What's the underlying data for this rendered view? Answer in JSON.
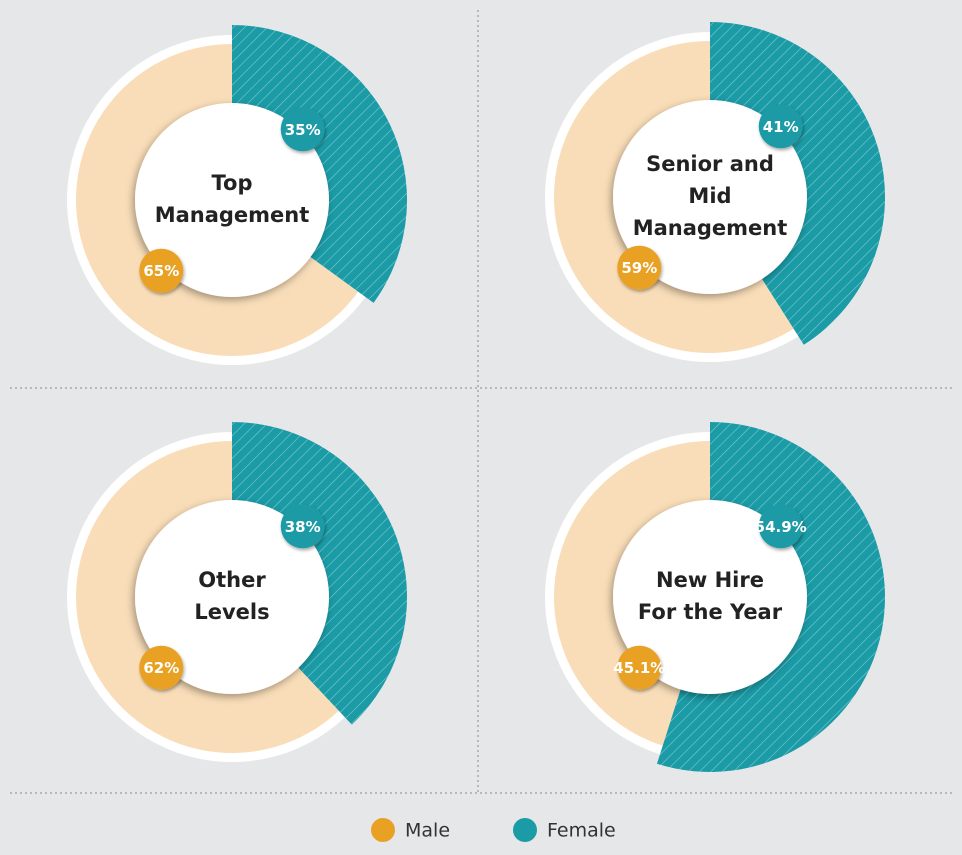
{
  "chart_data": [
    {
      "type": "pie",
      "title": [
        "Top",
        "Management"
      ],
      "categories": [
        "Male",
        "Female"
      ],
      "values": [
        65,
        35
      ],
      "value_labels": [
        "65%",
        "35%"
      ],
      "colors": [
        "#f9ddb8",
        "#1a9ba6"
      ],
      "marker_colors": [
        "#e8a123",
        "#1a9ba6"
      ]
    },
    {
      "type": "pie",
      "title": [
        "Senior and",
        "Mid",
        "Management"
      ],
      "categories": [
        "Male",
        "Female"
      ],
      "values": [
        59,
        41
      ],
      "value_labels": [
        "59%",
        "41%"
      ],
      "colors": [
        "#f9ddb8",
        "#1a9ba6"
      ],
      "marker_colors": [
        "#e8a123",
        "#1a9ba6"
      ]
    },
    {
      "type": "pie",
      "title": [
        "Other",
        "Levels"
      ],
      "categories": [
        "Male",
        "Female"
      ],
      "values": [
        62,
        38
      ],
      "value_labels": [
        "62%",
        "38%"
      ],
      "colors": [
        "#f9ddb8",
        "#1a9ba6"
      ],
      "marker_colors": [
        "#e8a123",
        "#1a9ba6"
      ]
    },
    {
      "type": "pie",
      "title": [
        "New Hire",
        "For the Year"
      ],
      "categories": [
        "Male",
        "Female"
      ],
      "values": [
        45.1,
        54.9
      ],
      "value_labels": [
        "45.1%",
        "54.9%"
      ],
      "colors": [
        "#f9ddb8",
        "#1a9ba6"
      ],
      "marker_colors": [
        "#e8a123",
        "#1a9ba6"
      ]
    }
  ]
}
